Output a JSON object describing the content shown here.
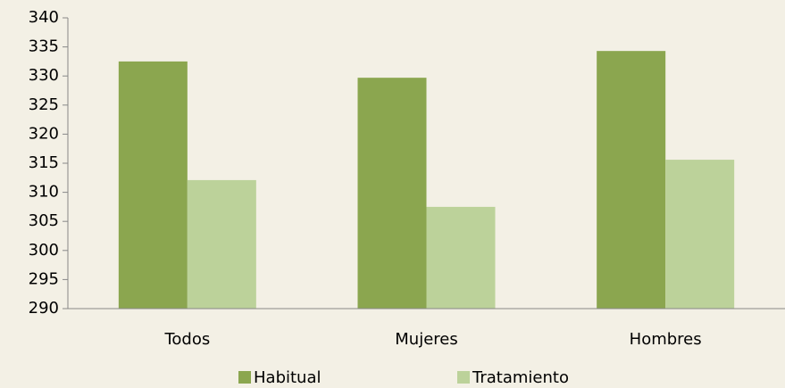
{
  "chart_data": {
    "type": "bar",
    "categories": [
      "Todos",
      "Mujeres",
      "Hombres"
    ],
    "series": [
      {
        "name": "Habitual",
        "color": "#8ba64f",
        "values": [
          332.5,
          329.7,
          334.3
        ]
      },
      {
        "name": "Tratamiento",
        "color": "#bcd29a",
        "values": [
          312.1,
          307.5,
          315.6
        ]
      }
    ],
    "ylim": [
      290,
      340
    ],
    "yticks": [
      290,
      295,
      300,
      305,
      310,
      315,
      320,
      325,
      330,
      335,
      340
    ],
    "legend": "bottom"
  }
}
